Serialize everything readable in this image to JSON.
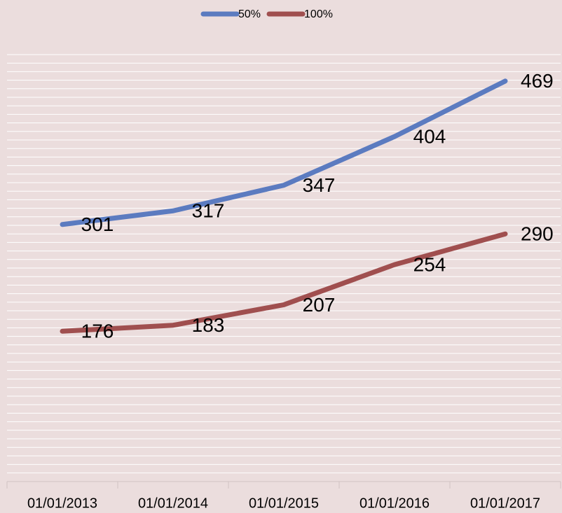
{
  "chart_data": {
    "type": "line",
    "categories": [
      "01/01/2013",
      "01/01/2014",
      "01/01/2015",
      "01/01/2016",
      "01/01/2017"
    ],
    "series": [
      {
        "name": "50%",
        "color": "#5b7bc0",
        "values": [
          301,
          317,
          347,
          404,
          469
        ]
      },
      {
        "name": "100%",
        "color": "#a04f4f",
        "values": [
          176,
          183,
          207,
          254,
          290
        ]
      }
    ],
    "ylim": [
      0,
      500
    ],
    "yticks": [
      0,
      10,
      20,
      30,
      40,
      50,
      60,
      70,
      80,
      90,
      100,
      110,
      120,
      130,
      140,
      150,
      160,
      170,
      180,
      190,
      200,
      210,
      220,
      230,
      240,
      250,
      260,
      270,
      280,
      290,
      300,
      310,
      320,
      330,
      340,
      350,
      360,
      370,
      380,
      390,
      400,
      410,
      420,
      430,
      440,
      450,
      460,
      470,
      480,
      490,
      500
    ],
    "grid": true,
    "legend": "top",
    "data_labels": true
  }
}
